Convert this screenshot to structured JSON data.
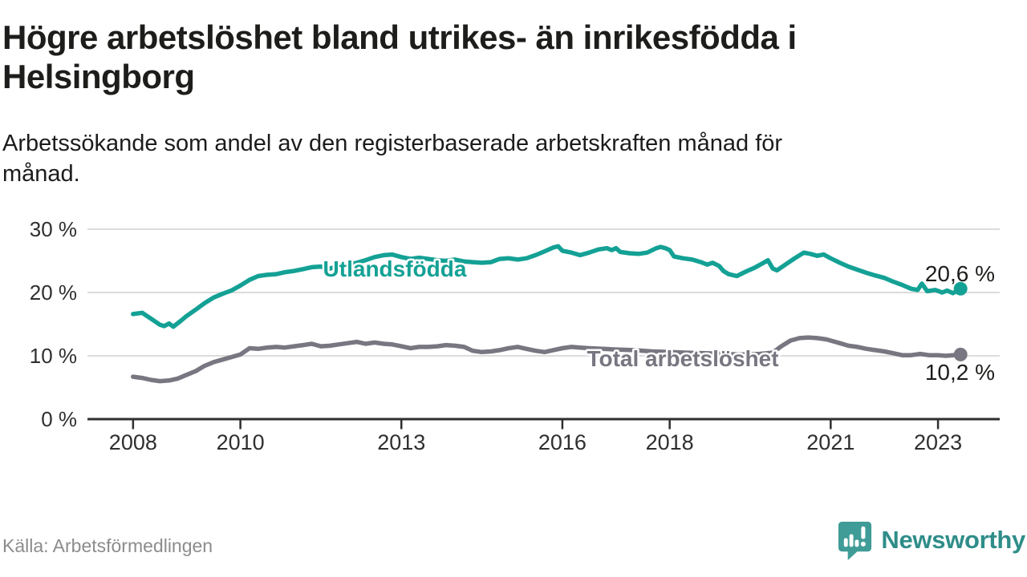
{
  "header": {
    "title": "Högre arbetslöshet bland utrikes- än inrikesfödda i\nHelsingborg",
    "subtitle": "Arbetssökande som andel av den registerbaserade arbetskraften månad för\nmånad."
  },
  "footer": {
    "source": "Källa: Arbetsförmedlingen",
    "brand": "Newsworthy"
  },
  "colors": {
    "series_foreign_born": "#14a195",
    "series_total": "#787680",
    "gridline": "#dcdcdc",
    "axis": "#2f2f2f",
    "value_label": "#1d1d1b",
    "source_text": "#8c8c8c",
    "logo_icon": "#3f9c96",
    "logo_wordmark": "#2f8d89"
  },
  "chart_data": {
    "type": "line",
    "title": "Högre arbetslöshet bland utrikes- än inrikesfödda i Helsingborg",
    "subtitle": "Arbetssökande som andel av den registerbaserade arbetskraften månad för månad.",
    "xlabel": "",
    "ylabel": "",
    "x_ticks": [
      2008,
      2010,
      2013,
      2016,
      2018,
      2021,
      2023
    ],
    "x_tick_labels": [
      "2008",
      "2010",
      "2013",
      "2016",
      "2018",
      "2021",
      "2023"
    ],
    "y_ticks": [
      0,
      10,
      20,
      30
    ],
    "y_tick_suffix": " %",
    "xlim": [
      2007.15,
      2024.15
    ],
    "ylim": [
      0,
      32
    ],
    "grid": "horizontal",
    "legend_position": "inline-labels",
    "series": [
      {
        "name": "Utlandsfödda",
        "color": "#14a195",
        "end_label": "20,6 %",
        "end_value": 20.6,
        "points": [
          [
            2008.0,
            16.6
          ],
          [
            2008.17,
            16.8
          ],
          [
            2008.33,
            15.9
          ],
          [
            2008.5,
            14.9
          ],
          [
            2008.58,
            14.7
          ],
          [
            2008.67,
            15.1
          ],
          [
            2008.75,
            14.6
          ],
          [
            2008.9,
            15.6
          ],
          [
            2009.0,
            16.3
          ],
          [
            2009.17,
            17.3
          ],
          [
            2009.33,
            18.3
          ],
          [
            2009.5,
            19.2
          ],
          [
            2009.67,
            19.8
          ],
          [
            2009.83,
            20.3
          ],
          [
            2010.0,
            21.1
          ],
          [
            2010.17,
            22.0
          ],
          [
            2010.33,
            22.6
          ],
          [
            2010.5,
            22.8
          ],
          [
            2010.67,
            22.9
          ],
          [
            2010.83,
            23.2
          ],
          [
            2011.0,
            23.4
          ],
          [
            2011.17,
            23.7
          ],
          [
            2011.33,
            24.0
          ],
          [
            2011.5,
            24.1
          ],
          [
            2011.63,
            23.7
          ],
          [
            2011.8,
            24.1
          ],
          [
            2012.0,
            24.4
          ],
          [
            2012.17,
            24.7
          ],
          [
            2012.33,
            25.1
          ],
          [
            2012.5,
            25.6
          ],
          [
            2012.67,
            25.9
          ],
          [
            2012.83,
            26.0
          ],
          [
            2013.0,
            25.6
          ],
          [
            2013.17,
            25.3
          ],
          [
            2013.33,
            25.5
          ],
          [
            2013.5,
            25.3
          ],
          [
            2013.67,
            25.1
          ],
          [
            2013.83,
            25.0
          ],
          [
            2014.0,
            25.2
          ],
          [
            2014.17,
            24.9
          ],
          [
            2014.33,
            24.8
          ],
          [
            2014.5,
            24.7
          ],
          [
            2014.67,
            24.8
          ],
          [
            2014.83,
            25.3
          ],
          [
            2015.0,
            25.4
          ],
          [
            2015.17,
            25.2
          ],
          [
            2015.33,
            25.4
          ],
          [
            2015.5,
            25.9
          ],
          [
            2015.67,
            26.5
          ],
          [
            2015.83,
            27.1
          ],
          [
            2015.92,
            27.3
          ],
          [
            2016.0,
            26.6
          ],
          [
            2016.17,
            26.3
          ],
          [
            2016.33,
            25.9
          ],
          [
            2016.5,
            26.3
          ],
          [
            2016.67,
            26.8
          ],
          [
            2016.83,
            27.0
          ],
          [
            2016.92,
            26.7
          ],
          [
            2017.0,
            27.0
          ],
          [
            2017.08,
            26.4
          ],
          [
            2017.25,
            26.2
          ],
          [
            2017.42,
            26.1
          ],
          [
            2017.58,
            26.3
          ],
          [
            2017.75,
            27.0
          ],
          [
            2017.83,
            27.2
          ],
          [
            2017.92,
            27.0
          ],
          [
            2018.0,
            26.7
          ],
          [
            2018.08,
            25.7
          ],
          [
            2018.25,
            25.4
          ],
          [
            2018.42,
            25.2
          ],
          [
            2018.58,
            24.8
          ],
          [
            2018.7,
            24.4
          ],
          [
            2018.8,
            24.7
          ],
          [
            2018.92,
            24.2
          ],
          [
            2019.0,
            23.4
          ],
          [
            2019.1,
            22.9
          ],
          [
            2019.25,
            22.6
          ],
          [
            2019.42,
            23.3
          ],
          [
            2019.58,
            23.9
          ],
          [
            2019.75,
            24.7
          ],
          [
            2019.83,
            25.1
          ],
          [
            2019.92,
            23.8
          ],
          [
            2020.0,
            23.5
          ],
          [
            2020.17,
            24.5
          ],
          [
            2020.33,
            25.4
          ],
          [
            2020.5,
            26.3
          ],
          [
            2020.62,
            26.1
          ],
          [
            2020.75,
            25.8
          ],
          [
            2020.87,
            26.0
          ],
          [
            2021.0,
            25.4
          ],
          [
            2021.17,
            24.7
          ],
          [
            2021.33,
            24.1
          ],
          [
            2021.5,
            23.6
          ],
          [
            2021.67,
            23.1
          ],
          [
            2021.83,
            22.7
          ],
          [
            2022.0,
            22.3
          ],
          [
            2022.17,
            21.7
          ],
          [
            2022.33,
            21.2
          ],
          [
            2022.5,
            20.6
          ],
          [
            2022.62,
            20.4
          ],
          [
            2022.7,
            21.4
          ],
          [
            2022.8,
            20.2
          ],
          [
            2022.95,
            20.4
          ],
          [
            2023.08,
            20.0
          ],
          [
            2023.17,
            20.3
          ],
          [
            2023.28,
            19.9
          ],
          [
            2023.42,
            20.6
          ]
        ]
      },
      {
        "name": "Total arbetslöshet",
        "color": "#787680",
        "end_label": "10,2 %",
        "end_value": 10.2,
        "points": [
          [
            2008.0,
            6.7
          ],
          [
            2008.17,
            6.5
          ],
          [
            2008.33,
            6.2
          ],
          [
            2008.5,
            6.0
          ],
          [
            2008.67,
            6.1
          ],
          [
            2008.83,
            6.4
          ],
          [
            2009.0,
            7.0
          ],
          [
            2009.17,
            7.6
          ],
          [
            2009.33,
            8.4
          ],
          [
            2009.5,
            9.0
          ],
          [
            2009.67,
            9.4
          ],
          [
            2009.83,
            9.8
          ],
          [
            2010.0,
            10.2
          ],
          [
            2010.17,
            11.2
          ],
          [
            2010.33,
            11.1
          ],
          [
            2010.5,
            11.3
          ],
          [
            2010.67,
            11.4
          ],
          [
            2010.83,
            11.3
          ],
          [
            2011.0,
            11.5
          ],
          [
            2011.17,
            11.7
          ],
          [
            2011.33,
            11.9
          ],
          [
            2011.5,
            11.5
          ],
          [
            2011.67,
            11.6
          ],
          [
            2011.83,
            11.8
          ],
          [
            2012.0,
            12.0
          ],
          [
            2012.17,
            12.2
          ],
          [
            2012.33,
            11.9
          ],
          [
            2012.5,
            12.1
          ],
          [
            2012.67,
            11.9
          ],
          [
            2012.83,
            11.8
          ],
          [
            2013.0,
            11.5
          ],
          [
            2013.17,
            11.2
          ],
          [
            2013.33,
            11.4
          ],
          [
            2013.5,
            11.4
          ],
          [
            2013.67,
            11.5
          ],
          [
            2013.83,
            11.7
          ],
          [
            2014.0,
            11.6
          ],
          [
            2014.17,
            11.4
          ],
          [
            2014.33,
            10.8
          ],
          [
            2014.5,
            10.6
          ],
          [
            2014.67,
            10.7
          ],
          [
            2014.83,
            10.9
          ],
          [
            2015.0,
            11.2
          ],
          [
            2015.17,
            11.4
          ],
          [
            2015.33,
            11.1
          ],
          [
            2015.5,
            10.8
          ],
          [
            2015.67,
            10.6
          ],
          [
            2015.83,
            10.9
          ],
          [
            2016.0,
            11.2
          ],
          [
            2016.17,
            11.4
          ],
          [
            2016.33,
            11.3
          ],
          [
            2016.5,
            11.2
          ],
          [
            2016.75,
            11.1
          ],
          [
            2017.0,
            11.0
          ],
          [
            2017.33,
            10.9
          ],
          [
            2017.67,
            10.7
          ],
          [
            2018.0,
            10.6
          ],
          [
            2018.33,
            10.5
          ],
          [
            2018.67,
            10.4
          ],
          [
            2019.0,
            10.3
          ],
          [
            2019.33,
            10.2
          ],
          [
            2019.67,
            10.3
          ],
          [
            2019.92,
            10.5
          ],
          [
            2020.08,
            11.5
          ],
          [
            2020.25,
            12.4
          ],
          [
            2020.42,
            12.8
          ],
          [
            2020.58,
            12.9
          ],
          [
            2020.75,
            12.8
          ],
          [
            2020.92,
            12.6
          ],
          [
            2021.0,
            12.4
          ],
          [
            2021.17,
            12.0
          ],
          [
            2021.33,
            11.6
          ],
          [
            2021.5,
            11.4
          ],
          [
            2021.67,
            11.1
          ],
          [
            2021.83,
            10.9
          ],
          [
            2022.0,
            10.7
          ],
          [
            2022.17,
            10.4
          ],
          [
            2022.33,
            10.1
          ],
          [
            2022.5,
            10.1
          ],
          [
            2022.67,
            10.3
          ],
          [
            2022.83,
            10.1
          ],
          [
            2023.0,
            10.1
          ],
          [
            2023.15,
            10.0
          ],
          [
            2023.28,
            10.1
          ],
          [
            2023.42,
            10.2
          ]
        ]
      }
    ]
  }
}
